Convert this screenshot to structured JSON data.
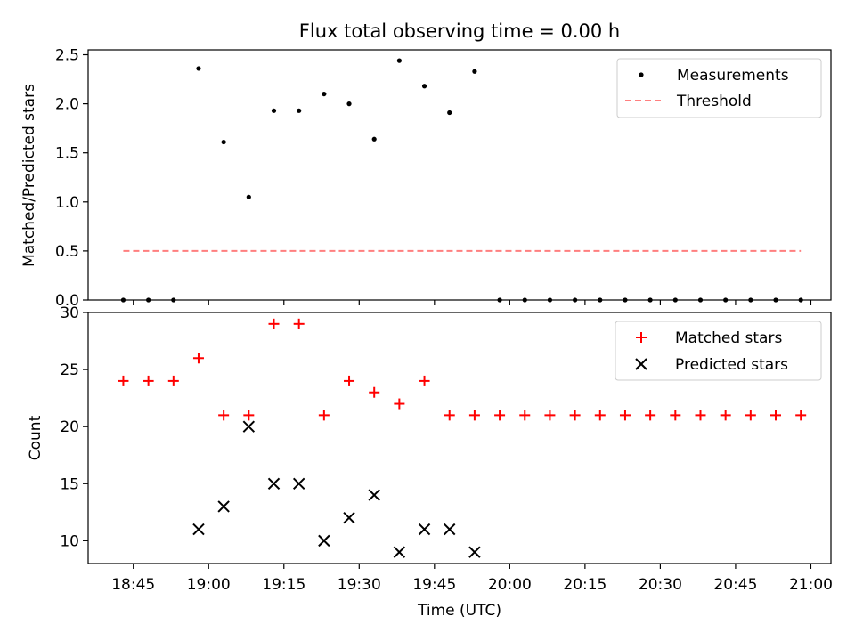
{
  "chart_data": [
    {
      "type": "scatter",
      "title": "Flux total observing time = 0.00 h",
      "xlabel": "",
      "ylabel": "Matched/Predicted stars",
      "xlim": [
        "18:36",
        "21:04"
      ],
      "ylim": [
        0,
        2.55
      ],
      "yticks": [
        "0.0",
        "0.5",
        "1.0",
        "1.5",
        "2.0",
        "2.5"
      ],
      "legend_position": "top-right",
      "series": [
        {
          "name": "Measurements",
          "marker": "dot",
          "color": "#000000",
          "x": [
            "18:43",
            "18:48",
            "18:53",
            "18:58",
            "19:03",
            "19:08",
            "19:13",
            "19:18",
            "19:23",
            "19:28",
            "19:33",
            "19:38",
            "19:43",
            "19:48",
            "19:53",
            "19:58",
            "20:03",
            "20:08",
            "20:13",
            "20:18",
            "20:23",
            "20:28",
            "20:33",
            "20:38",
            "20:43",
            "20:48",
            "20:53",
            "20:58"
          ],
          "y": [
            0,
            0,
            0,
            2.36,
            1.61,
            1.05,
            1.93,
            1.93,
            2.1,
            2.0,
            1.64,
            2.44,
            2.18,
            1.91,
            2.33,
            0,
            0,
            0,
            0,
            0,
            0,
            0,
            0,
            0,
            0,
            0,
            0,
            0
          ]
        },
        {
          "name": "Threshold",
          "marker": "dashed-line",
          "color": "#ff7f7f",
          "x": [
            "18:43",
            "20:58"
          ],
          "y": [
            0.5,
            0.5
          ]
        }
      ]
    },
    {
      "type": "scatter",
      "title": "",
      "xlabel": "Time (UTC)",
      "ylabel": "Count",
      "xlim": [
        "18:36",
        "21:04"
      ],
      "ylim": [
        8,
        30
      ],
      "xticks": [
        "18:45",
        "19:00",
        "19:15",
        "19:30",
        "19:45",
        "20:00",
        "20:15",
        "20:30",
        "20:45",
        "21:00"
      ],
      "yticks": [
        "10",
        "15",
        "20",
        "25",
        "30"
      ],
      "legend_position": "top-right",
      "series": [
        {
          "name": "Matched stars",
          "marker": "plus",
          "color": "#ff0000",
          "x": [
            "18:43",
            "18:48",
            "18:53",
            "18:58",
            "19:03",
            "19:08",
            "19:13",
            "19:18",
            "19:23",
            "19:28",
            "19:33",
            "19:38",
            "19:43",
            "19:48",
            "19:53",
            "19:58",
            "20:03",
            "20:08",
            "20:13",
            "20:18",
            "20:23",
            "20:28",
            "20:33",
            "20:38",
            "20:43",
            "20:48",
            "20:53",
            "20:58"
          ],
          "y": [
            24,
            24,
            24,
            26,
            21,
            21,
            29,
            29,
            21,
            24,
            23,
            22,
            24,
            21,
            21,
            21,
            21,
            21,
            21,
            21,
            21,
            21,
            21,
            21,
            21,
            21,
            21,
            21
          ]
        },
        {
          "name": "Predicted stars",
          "marker": "x",
          "color": "#000000",
          "x": [
            "18:58",
            "19:03",
            "19:08",
            "19:13",
            "19:18",
            "19:23",
            "19:28",
            "19:33",
            "19:38",
            "19:43",
            "19:48",
            "19:53"
          ],
          "y": [
            11,
            13,
            20,
            15,
            15,
            10,
            12,
            14,
            9,
            11,
            11,
            9
          ]
        }
      ]
    }
  ]
}
